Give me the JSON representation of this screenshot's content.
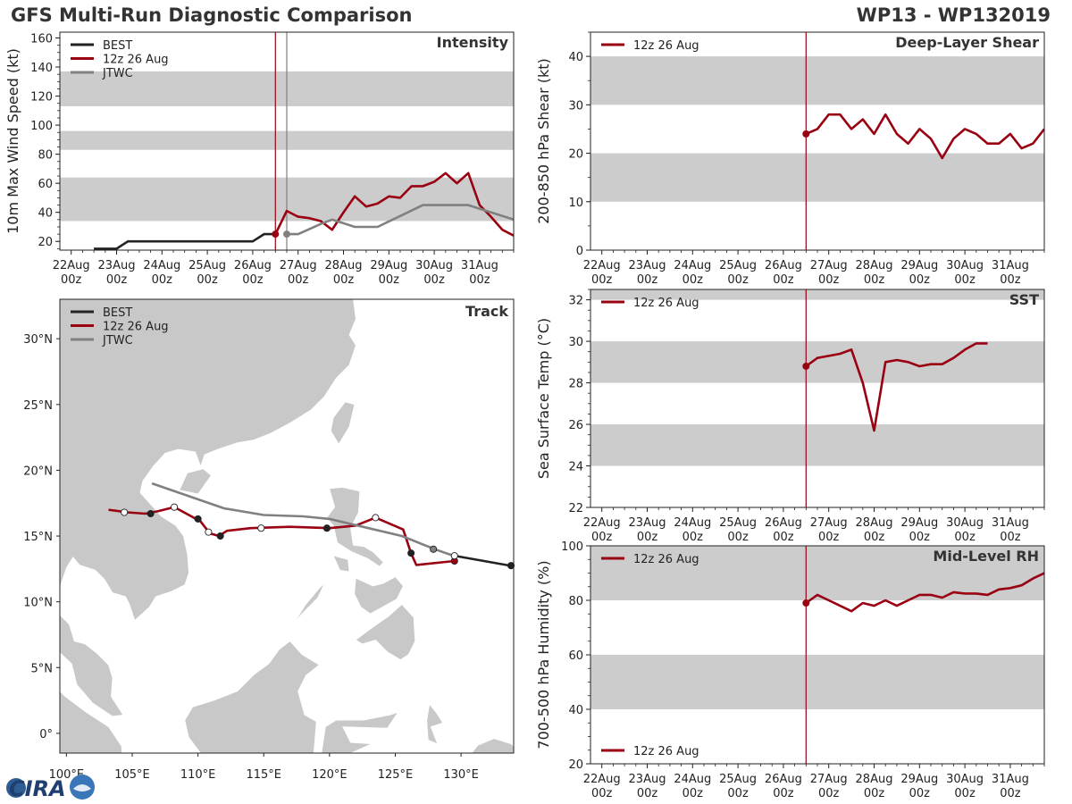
{
  "header": {
    "title": "GFS Multi-Run Diagnostic Comparison",
    "storm": "WP13 - WP132019"
  },
  "legend": {
    "best": "BEST",
    "run": "12z 26 Aug",
    "jtwc": "JTWC"
  },
  "logo": {
    "text": "CIRA"
  },
  "colors": {
    "best": "#222222",
    "run": "#990011",
    "jtwc": "#808080",
    "band": "#cccccc",
    "land": "#c8c8c8"
  },
  "time_axis": {
    "start": "22Aug 00z",
    "ticks": [
      {
        "day": 0,
        "label1": "22Aug",
        "label2": "00z"
      },
      {
        "day": 1,
        "label1": "23Aug",
        "label2": "00z"
      },
      {
        "day": 2,
        "label1": "24Aug",
        "label2": "00z"
      },
      {
        "day": 3,
        "label1": "25Aug",
        "label2": "00z"
      },
      {
        "day": 4,
        "label1": "26Aug",
        "label2": "00z"
      },
      {
        "day": 5,
        "label1": "27Aug",
        "label2": "00z"
      },
      {
        "day": 6,
        "label1": "28Aug",
        "label2": "00z"
      },
      {
        "day": 7,
        "label1": "29Aug",
        "label2": "00z"
      },
      {
        "day": 8,
        "label1": "30Aug",
        "label2": "00z"
      },
      {
        "day": 9,
        "label1": "31Aug",
        "label2": "00z"
      }
    ]
  },
  "chart_data": [
    {
      "id": "intensity",
      "type": "line",
      "title": "Intensity",
      "xlabel": "",
      "ylabel": "10m Max Wind Speed (kt)",
      "xlim": [
        -0.25,
        9.75
      ],
      "ylim": [
        14,
        164
      ],
      "yticks": [
        20,
        40,
        60,
        80,
        100,
        120,
        140,
        160
      ],
      "bands": [
        [
          34,
          64
        ],
        [
          83,
          96
        ],
        [
          113,
          137
        ]
      ],
      "vlines": [
        {
          "x": 4.5,
          "color": "run"
        },
        {
          "x": 4.75,
          "color": "jtwc"
        }
      ],
      "series": [
        {
          "name": "BEST",
          "color": "best",
          "x": [
            0.5,
            1.0,
            1.25,
            1.5,
            2.0,
            2.5,
            3.0,
            3.5,
            4.0,
            4.25,
            4.5
          ],
          "y": [
            15,
            15,
            20,
            20,
            20,
            20,
            20,
            20,
            20,
            25,
            25
          ]
        },
        {
          "name": "12z 26 Aug",
          "color": "run",
          "start_marker": true,
          "x": [
            4.5,
            4.75,
            5.0,
            5.25,
            5.5,
            5.75,
            6.0,
            6.25,
            6.5,
            6.75,
            7.0,
            7.25,
            7.5,
            7.75,
            8.0,
            8.25,
            8.5,
            8.75,
            9.0,
            9.25,
            9.5,
            9.75
          ],
          "y": [
            25,
            41,
            37,
            36,
            34,
            28,
            40,
            51,
            44,
            46,
            51,
            50,
            58,
            58,
            61,
            67,
            60,
            67,
            45,
            37,
            28,
            24
          ]
        },
        {
          "name": "JTWC",
          "color": "jtwc",
          "start_marker": true,
          "x": [
            4.75,
            5.0,
            5.5,
            5.75,
            6.25,
            6.75,
            7.75,
            8.25,
            8.75,
            9.75
          ],
          "y": [
            25,
            25,
            32,
            35,
            30,
            30,
            45,
            45,
            45,
            35
          ]
        }
      ]
    },
    {
      "id": "shear",
      "type": "line",
      "title": "Deep-Layer Shear",
      "xlabel": "",
      "ylabel": "200-850 hPa Shear (kt)",
      "xlim": [
        -0.25,
        9.75
      ],
      "ylim": [
        0,
        45
      ],
      "yticks": [
        0,
        10,
        20,
        30,
        40
      ],
      "bands": [
        [
          10,
          20
        ],
        [
          30,
          40
        ]
      ],
      "vlines": [
        {
          "x": 4.5,
          "color": "run"
        }
      ],
      "series": [
        {
          "name": "12z 26 Aug",
          "color": "run",
          "start_marker": true,
          "x": [
            4.5,
            4.75,
            5.0,
            5.25,
            5.5,
            5.75,
            6.0,
            6.25,
            6.5,
            6.75,
            7.0,
            7.25,
            7.5,
            7.75,
            8.0,
            8.25,
            8.5,
            8.75,
            9.0,
            9.25,
            9.5,
            9.75
          ],
          "y": [
            24,
            25,
            28,
            28,
            25,
            27,
            24,
            28,
            24,
            22,
            25,
            23,
            19,
            23,
            25,
            24,
            22,
            22,
            24,
            21,
            22,
            25
          ]
        }
      ]
    },
    {
      "id": "sst",
      "type": "line",
      "title": "SST",
      "xlabel": "",
      "ylabel": "Sea Surface Temp (°C)",
      "xlim": [
        -0.25,
        9.75
      ],
      "ylim": [
        22,
        32.5
      ],
      "yticks": [
        22,
        24,
        26,
        28,
        30,
        32
      ],
      "bands": [
        [
          24,
          26
        ],
        [
          28,
          30
        ],
        [
          32,
          32.5
        ]
      ],
      "vlines": [
        {
          "x": 4.5,
          "color": "run"
        }
      ],
      "series": [
        {
          "name": "12z 26 Aug",
          "color": "run",
          "start_marker": true,
          "x": [
            4.5,
            4.75,
            5.0,
            5.25,
            5.5,
            5.75,
            6.0,
            6.25,
            6.5,
            6.75,
            7.0,
            7.25,
            7.5,
            7.75,
            8.0,
            8.25,
            8.5
          ],
          "y": [
            28.8,
            29.2,
            29.3,
            29.4,
            29.6,
            28.0,
            25.7,
            29.0,
            29.1,
            29.0,
            28.8,
            28.9,
            28.9,
            29.2,
            29.6,
            29.9,
            29.9
          ]
        }
      ]
    },
    {
      "id": "rh",
      "type": "line",
      "title": "Mid-Level RH",
      "xlabel": "",
      "ylabel": "700-500 hPa Humidity (%)",
      "xlim": [
        -0.25,
        9.75
      ],
      "ylim": [
        20,
        100
      ],
      "yticks": [
        20,
        40,
        60,
        80,
        100
      ],
      "bands": [
        [
          40,
          60
        ],
        [
          80,
          100
        ]
      ],
      "vlines": [
        {
          "x": 4.5,
          "color": "run"
        }
      ],
      "legend_pos": "bottom-left",
      "series": [
        {
          "name": "12z 26 Aug",
          "color": "run",
          "start_marker": true,
          "x": [
            4.5,
            4.75,
            5.0,
            5.25,
            5.5,
            5.75,
            6.0,
            6.25,
            6.5,
            6.75,
            7.0,
            7.25,
            7.5,
            7.75,
            8.0,
            8.25,
            8.5,
            8.75,
            9.0,
            9.25,
            9.5,
            9.75
          ],
          "y": [
            79,
            82,
            80,
            78,
            76,
            79,
            78,
            80,
            78,
            80,
            82,
            82,
            81,
            83,
            82.5,
            82.5,
            82,
            84,
            84.5,
            85.5,
            88,
            90
          ]
        }
      ]
    },
    {
      "id": "track",
      "type": "line",
      "title": "Track",
      "xlabel": "",
      "ylabel": "",
      "xlim": [
        99.5,
        134
      ],
      "ylim": [
        -1.5,
        33
      ],
      "xticks": [
        {
          "v": 100,
          "label": "100°E"
        },
        {
          "v": 105,
          "label": "105°E"
        },
        {
          "v": 110,
          "label": "110°E"
        },
        {
          "v": 115,
          "label": "115°E"
        },
        {
          "v": 120,
          "label": "120°E"
        },
        {
          "v": 125,
          "label": "125°E"
        },
        {
          "v": 130,
          "label": "130°E"
        }
      ],
      "yticks": [
        {
          "v": 0,
          "label": "0°"
        },
        {
          "v": 5,
          "label": "5°N"
        },
        {
          "v": 10,
          "label": "10°N"
        },
        {
          "v": 15,
          "label": "15°N"
        },
        {
          "v": 20,
          "label": "20°N"
        },
        {
          "v": 25,
          "label": "25°N"
        },
        {
          "v": 30,
          "label": "30°N"
        }
      ],
      "series": [
        {
          "name": "BEST",
          "color": "best",
          "lon": [
            129.5,
            134.0
          ],
          "lat": [
            13.5,
            12.7
          ],
          "dots": [
            {
              "lon": 133.8,
              "lat": 12.75,
              "fill": "best"
            }
          ]
        },
        {
          "name": "12z 26 Aug",
          "color": "run",
          "lon": [
            129.5,
            126.6,
            126.2,
            125.6,
            123.5,
            122.0,
            120.0,
            117.0,
            114.0,
            112.2,
            111.6,
            110.9,
            110.2,
            109.5,
            108.2,
            107.0,
            106.0,
            104.6,
            103.2
          ],
          "lat": [
            13.1,
            12.8,
            13.7,
            15.5,
            16.4,
            15.8,
            15.6,
            15.7,
            15.6,
            15.4,
            15.0,
            15.2,
            16.1,
            16.5,
            17.2,
            16.9,
            16.7,
            16.8,
            17.0
          ],
          "dots": [
            {
              "lon": 129.5,
              "lat": 13.1,
              "fill": "run"
            },
            {
              "lon": 126.2,
              "lat": 13.7,
              "fill": "best"
            },
            {
              "lon": 123.5,
              "lat": 16.4,
              "fill": "white"
            },
            {
              "lon": 119.8,
              "lat": 15.6,
              "fill": "best"
            },
            {
              "lon": 114.8,
              "lat": 15.6,
              "fill": "white"
            },
            {
              "lon": 111.7,
              "lat": 15.0,
              "fill": "best"
            },
            {
              "lon": 110.8,
              "lat": 15.3,
              "fill": "white"
            },
            {
              "lon": 110.0,
              "lat": 16.3,
              "fill": "best"
            },
            {
              "lon": 108.2,
              "lat": 17.2,
              "fill": "white"
            },
            {
              "lon": 106.4,
              "lat": 16.7,
              "fill": "best"
            },
            {
              "lon": 104.4,
              "lat": 16.8,
              "fill": "white"
            }
          ]
        },
        {
          "name": "JTWC",
          "color": "jtwc",
          "lon": [
            129.7,
            128.0,
            125.5,
            120.0,
            118.0,
            115.0,
            112.0,
            106.5
          ],
          "lat": [
            13.4,
            14.0,
            15.0,
            16.3,
            16.5,
            16.6,
            17.1,
            19.0
          ],
          "dots": [
            {
              "lon": 129.5,
              "lat": 13.5,
              "fill": "white"
            },
            {
              "lon": 127.9,
              "lat": 14.0,
              "fill": "jtwc"
            }
          ]
        }
      ]
    }
  ]
}
